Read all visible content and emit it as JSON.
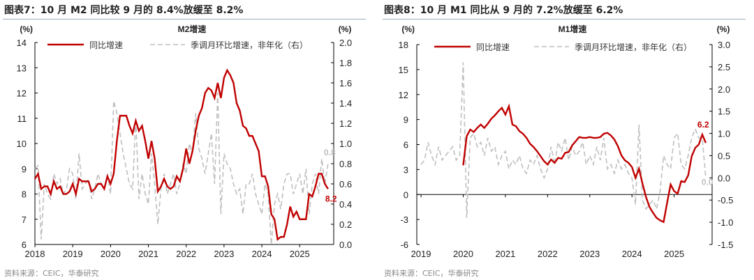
{
  "colors": {
    "yoy": "#c00000",
    "mom": "#bfbfbf"
  },
  "chart_data": [
    {
      "figure_title": "图表7：10 月 M2 同比较 9 月的 8.4%放缓至 8.2%",
      "title": "M2增速",
      "source": "资料来源：CEIC，华泰研究",
      "type": "line",
      "ylabel_left": "(%)",
      "ylabel_right": "(%)",
      "ylim_left": [
        6,
        14
      ],
      "yticks_left": [
        "6",
        "7",
        "8",
        "9",
        "10",
        "11",
        "12",
        "13",
        "14"
      ],
      "ylim_right": [
        0,
        2
      ],
      "yticks_right": [
        "0.0",
        "0.2",
        "0.4",
        "0.6",
        "0.8",
        "1.0",
        "1.2",
        "1.4",
        "1.6",
        "1.8",
        "2.0"
      ],
      "xticks": [
        "2018",
        "2019",
        "2020",
        "2021",
        "2022",
        "2023",
        "2024",
        "2025"
      ],
      "x_start": "2018-01",
      "legend_placement": "top",
      "series": [
        {
          "name": "同比增速",
          "axis": "left",
          "end_label": "8.2",
          "values": [
            8.6,
            8.8,
            8.2,
            8.3,
            8.3,
            8.0,
            8.5,
            8.2,
            8.3,
            8.0,
            8.0,
            8.1,
            8.4,
            8.0,
            8.6,
            8.5,
            8.5,
            8.5,
            8.1,
            8.2,
            8.4,
            8.4,
            8.2,
            8.7,
            8.4,
            8.8,
            10.1,
            11.1,
            11.1,
            11.1,
            10.7,
            10.4,
            10.9,
            10.5,
            10.7,
            10.1,
            9.4,
            10.1,
            9.4,
            8.1,
            8.3,
            8.6,
            8.3,
            8.2,
            8.3,
            8.7,
            8.5,
            9.0,
            9.8,
            9.2,
            9.7,
            10.5,
            11.1,
            11.4,
            12.0,
            12.2,
            12.1,
            11.8,
            12.4,
            11.8,
            12.6,
            12.9,
            12.7,
            12.4,
            11.6,
            11.3,
            10.7,
            10.6,
            10.3,
            10.3,
            10.0,
            9.7,
            8.7,
            8.7,
            8.3,
            7.2,
            7.0,
            6.2,
            6.3,
            6.3,
            6.8,
            7.5,
            7.1,
            7.3,
            7.0,
            7.0,
            7.0,
            8.0,
            7.9,
            8.3,
            8.8,
            8.8,
            8.4,
            8.2
          ]
        },
        {
          "name": "季调月环比增速，非年化（右）",
          "axis": "right",
          "end_label": "0.8",
          "values": [
            0.75,
            0.78,
            0.05,
            0.6,
            0.5,
            0.45,
            0.7,
            0.6,
            0.65,
            0.5,
            0.55,
            0.75,
            0.7,
            0.45,
            0.9,
            0.55,
            0.6,
            0.65,
            0.45,
            0.55,
            0.7,
            0.6,
            0.55,
            0.7,
            0.5,
            1.42,
            1.3,
            1.1,
            0.9,
            0.75,
            0.6,
            0.55,
            1.25,
            0.45,
            0.7,
            0.5,
            0.4,
            0.9,
            0.6,
            0.2,
            0.55,
            0.7,
            0.5,
            0.6,
            0.7,
            0.5,
            0.6,
            0.8,
            0.7,
            1.0,
            0.9,
            1.3,
            0.95,
            0.85,
            0.7,
            0.9,
            1.1,
            0.6,
            1.5,
            0.3,
            0.9,
            0.8,
            0.75,
            0.6,
            0.5,
            0.55,
            0.3,
            0.6,
            0.6,
            0.7,
            0.5,
            0.4,
            0.3,
            0.6,
            0.5,
            0.0,
            0.4,
            0.5,
            0.35,
            0.6,
            0.7,
            0.7,
            0.5,
            0.6,
            0.7,
            0.5,
            0.75,
            0.3,
            0.6,
            0.7,
            0.5,
            0.85,
            0.6,
            0.8
          ]
        }
      ]
    },
    {
      "figure_title": "图表8：10 月 M1 同比从 9 月的 7.2%放缓至 6.2%",
      "title": "M1增速",
      "source": "资料来源：CEIC，华泰研究",
      "type": "line",
      "ylabel_left": "(%)",
      "ylabel_right": "(%)",
      "ylim_left": [
        -6,
        18
      ],
      "yticks_left": [
        "-6",
        "-3",
        "0",
        "3",
        "6",
        "9",
        "12",
        "15",
        "18"
      ],
      "ylim_right": [
        -1.5,
        3
      ],
      "yticks_right": [
        "-1.5",
        "-1.0",
        "-0.5",
        "0.0",
        "0.5",
        "1.0",
        "1.5",
        "2.0",
        "2.5",
        "3.0"
      ],
      "xticks": [
        "2019",
        "2020",
        "2021",
        "2022",
        "2023",
        "2024",
        "2025"
      ],
      "x_start": "2019-01",
      "legend_placement": "top",
      "series": [
        {
          "name": "同比增速",
          "axis": "left",
          "start": "2020-01",
          "end_label": "6.2",
          "values": [
            3.5,
            7.0,
            7.8,
            7.5,
            8.0,
            8.4,
            8.0,
            8.5,
            9.1,
            9.5,
            10.0,
            10.4,
            9.6,
            10.6,
            8.4,
            8.2,
            7.6,
            7.3,
            6.8,
            6.1,
            5.7,
            5.2,
            4.6,
            4.0,
            3.6,
            4.2,
            3.8,
            4.4,
            4.3,
            5.0,
            5.1,
            5.9,
            6.4,
            6.9,
            6.8,
            6.8,
            6.9,
            6.8,
            6.8,
            6.9,
            7.3,
            7.4,
            7.1,
            6.6,
            5.8,
            4.7,
            4.1,
            3.8,
            3.3,
            2.0,
            3.1,
            1.3,
            -0.3,
            -1.5,
            -2.2,
            -2.8,
            -3.1,
            -3.3,
            -1.0,
            1.2,
            0.4,
            0.1,
            1.6,
            1.5,
            2.3,
            4.6,
            5.6,
            6.0,
            7.2,
            6.2
          ]
        },
        {
          "name": "季调月环比增速，非年化（右）",
          "axis": "right",
          "start": "2019-01",
          "end_label": "0.0",
          "values": [
            0.3,
            0.4,
            0.8,
            0.5,
            0.3,
            0.7,
            0.4,
            0.5,
            0.6,
            0.7,
            0.4,
            0.5,
            2.6,
            -0.9,
            0.9,
            1.0,
            0.7,
            0.8,
            0.5,
            0.9,
            0.6,
            0.7,
            0.3,
            0.5,
            0.6,
            0.2,
            0.4,
            0.3,
            0.5,
            0.2,
            0.1,
            0.4,
            0.3,
            0.5,
            0.2,
            0.0,
            0.2,
            0.7,
            0.3,
            0.8,
            0.6,
            0.9,
            0.4,
            0.7,
            0.5,
            0.6,
            0.8,
            0.3,
            0.5,
            0.3,
            0.7,
            0.4,
            0.9,
            0.2,
            0.3,
            0.1,
            0.4,
            0.2,
            0.3,
            0.1,
            0.0,
            -0.6,
            1.2,
            -0.5,
            -0.7,
            -0.6,
            -0.5,
            -0.7,
            -0.3,
            0.5,
            0.3,
            0.2,
            0.9,
            1.0,
            0.3,
            0.2,
            0.5,
            0.9,
            1.1,
            0.9,
            0.9,
            0.0
          ]
        }
      ]
    }
  ]
}
